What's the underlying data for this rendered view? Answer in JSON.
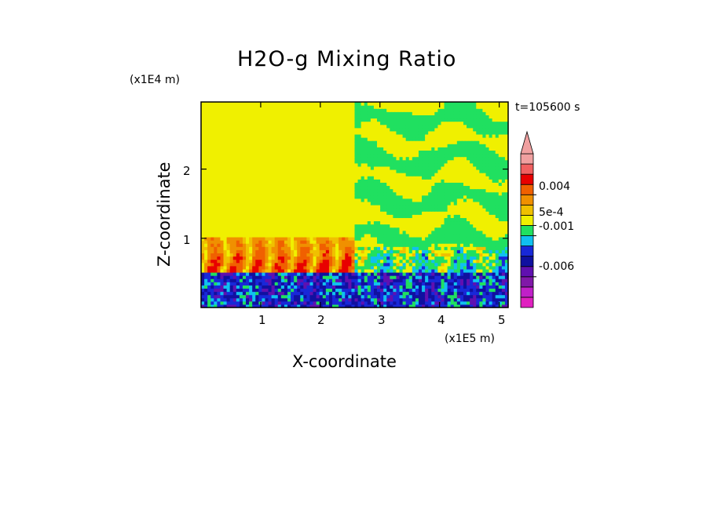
{
  "chart_data": {
    "type": "heatmap",
    "title": "H2O-g Mixing Ratio",
    "xlabel": "X-coordinate",
    "ylabel": "Z-coordinate",
    "x_scale_label": "(x1E5 m)",
    "y_scale_label": "(x1E4 m)",
    "time_label": "t=105600 s",
    "xlim": [
      0,
      5.15
    ],
    "ylim": [
      0,
      2.97
    ],
    "xticks": [
      1,
      2,
      3,
      4,
      5
    ],
    "xtick_labels": [
      "1",
      "2",
      "3",
      "4",
      "5"
    ],
    "yticks": [
      1,
      2
    ],
    "ytick_labels": [
      "1",
      "2"
    ],
    "colorbar": {
      "levels_bottom_to_top": [
        {
          "color": "#e020c0"
        },
        {
          "color": "#c020c8"
        },
        {
          "color": "#8018a8"
        },
        {
          "color": "#6010b0"
        },
        {
          "color": "#1010a0"
        },
        {
          "color": "#1828d8"
        },
        {
          "color": "#10c0f0"
        },
        {
          "color": "#20e060"
        },
        {
          "color": "#f0f000"
        },
        {
          "color": "#f0c000"
        },
        {
          "color": "#f09000"
        },
        {
          "color": "#f06000"
        },
        {
          "color": "#e80000"
        },
        {
          "color": "#f06060"
        },
        {
          "color": "#f0a0a0"
        }
      ],
      "extend_top_color": "#f0a0a0",
      "labels": [
        {
          "text": "0.004",
          "level": 11
        },
        {
          "text": "5e-4",
          "level": 8
        },
        {
          "text": "-0.001",
          "level": 7
        },
        {
          "text": "-0.006",
          "level": 3
        }
      ]
    },
    "regions": [
      {
        "x0": 0,
        "x1": 2.55,
        "z0": 1.0,
        "z1": 2.97,
        "dominant": "yellow"
      },
      {
        "x0": 0,
        "x1": 2.55,
        "z0": 0.5,
        "z1": 1.0,
        "dominant": "orange plumes"
      },
      {
        "x0": 2.55,
        "x1": 5.15,
        "z0": 0.9,
        "z1": 2.97,
        "dominant": "yellow/green streaks"
      },
      {
        "x0": 2.55,
        "x1": 5.15,
        "z0": 0.5,
        "z1": 0.9,
        "dominant": "cyan/green"
      },
      {
        "x0": 0,
        "x1": 5.15,
        "z0": 0,
        "z1": 0.5,
        "dominant": "blue"
      }
    ]
  }
}
